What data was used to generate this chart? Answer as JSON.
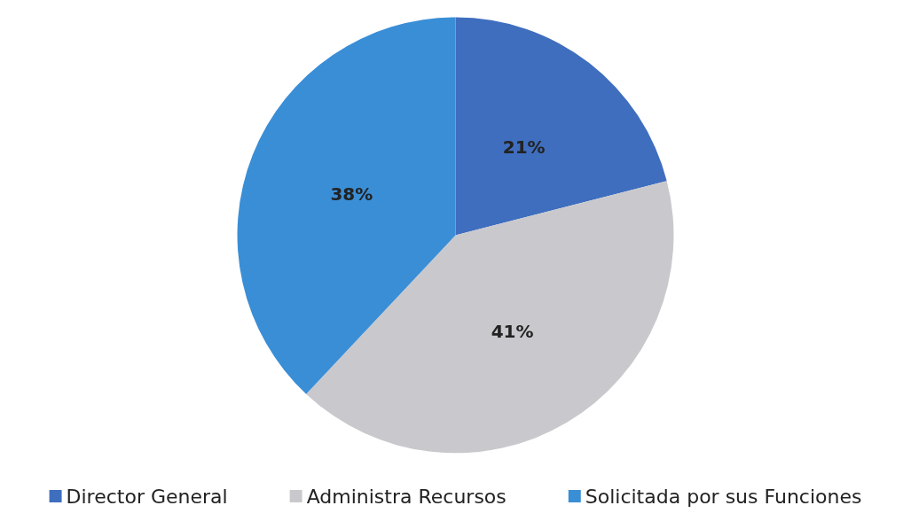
{
  "chart_data": {
    "type": "pie",
    "categories": [
      "Director General",
      "Administra Recursos",
      "Solicitada por sus Funciones"
    ],
    "values": [
      21,
      41,
      38
    ],
    "value_labels": [
      "21%",
      "41%",
      "38%"
    ],
    "colors": [
      "#3f6ebe",
      "#c9c9cd",
      "#3a8ed6"
    ],
    "legend": "bottom"
  }
}
